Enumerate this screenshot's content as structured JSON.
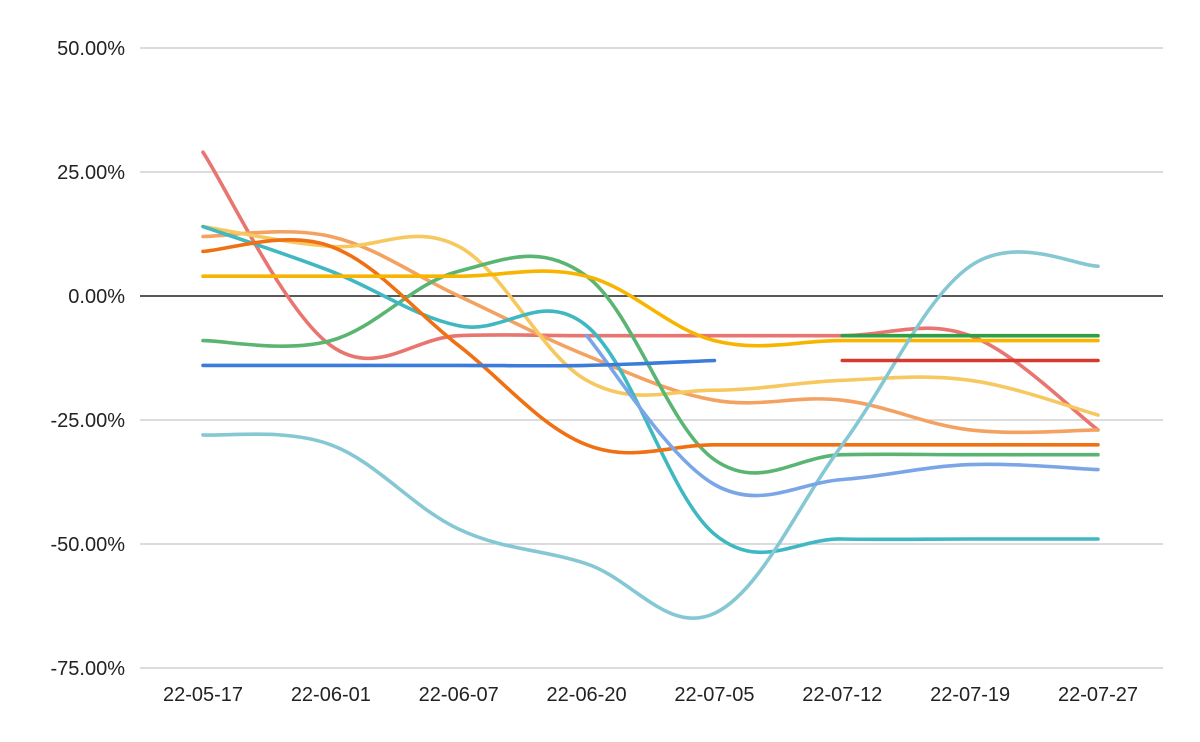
{
  "chart_data": {
    "type": "line",
    "title": "",
    "xlabel": "",
    "ylabel": "",
    "x": [
      "22-05-17",
      "22-06-01",
      "22-06-07",
      "22-06-20",
      "22-07-05",
      "22-07-12",
      "22-07-19",
      "22-07-27"
    ],
    "y_ticks": [
      "50.00%",
      "25.00%",
      "0.00%",
      "-25.00%",
      "-50.00%",
      "-75.00%"
    ],
    "ylim": [
      -75,
      50
    ],
    "grid": true,
    "legend": "none",
    "series": [
      {
        "color": "#e8756f",
        "values": [
          29,
          -10,
          -8,
          -8,
          -8,
          -8,
          -8,
          -27
        ]
      },
      {
        "color": "#f4a261",
        "values": [
          12,
          12,
          0,
          -12,
          -21,
          -21,
          -27,
          -27
        ]
      },
      {
        "color": "#f6c85f",
        "values": [
          14,
          10,
          10,
          -17,
          -19,
          -17,
          -17,
          -24
        ]
      },
      {
        "color": "#5ab572",
        "values": [
          -9,
          -9,
          5,
          4,
          -33,
          -32,
          -32,
          -32
        ]
      },
      {
        "color": "#3fb8c2",
        "values": [
          14,
          5,
          -6,
          -6,
          -48,
          -49,
          -49,
          -49
        ]
      },
      {
        "color": "#f07014",
        "values": [
          9,
          10,
          -10,
          -30,
          -30,
          -30,
          -30,
          -30
        ]
      },
      {
        "color": "#f7b500",
        "values": [
          4,
          4,
          4,
          4,
          -9,
          -9,
          -9,
          -9
        ]
      },
      {
        "color": "#85c8d3",
        "values": [
          -28,
          -30,
          -47,
          -54,
          -64,
          -30,
          6,
          6
        ]
      },
      {
        "color": "#7aa6e8",
        "values": [
          null,
          null,
          null,
          -8,
          -38,
          -37,
          -34,
          -35
        ]
      },
      {
        "color": "#3b7bd9",
        "values": [
          -14,
          -14,
          -14,
          -14,
          -13,
          null,
          null,
          null
        ]
      },
      {
        "color": "#2f9e44",
        "values": [
          null,
          null,
          null,
          null,
          null,
          -8,
          -8,
          -8
        ]
      },
      {
        "color": "#d63a2f",
        "values": [
          null,
          null,
          null,
          null,
          null,
          -13,
          -13,
          -13
        ]
      }
    ]
  }
}
